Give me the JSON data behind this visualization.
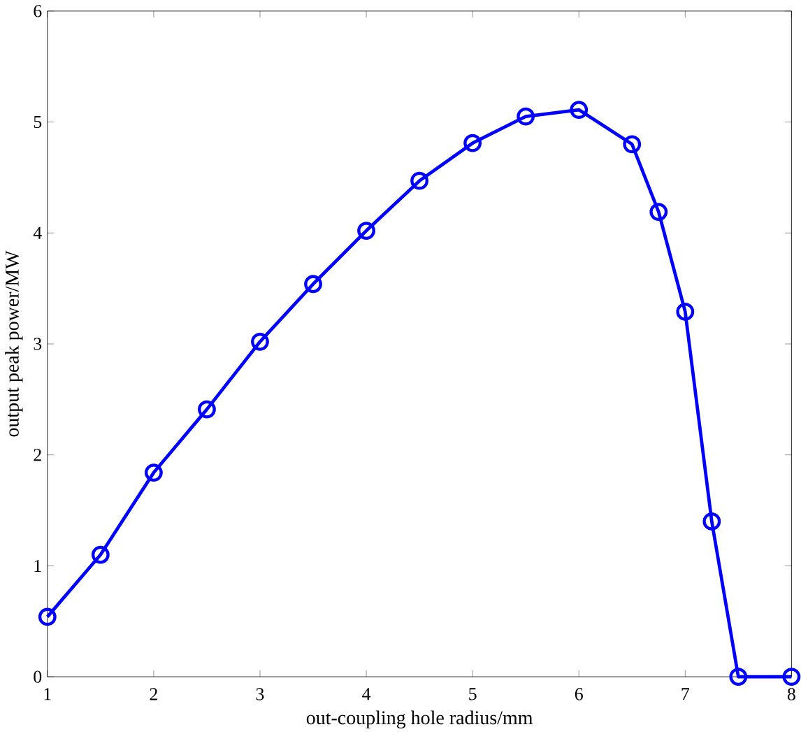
{
  "chart_data": {
    "type": "line",
    "xlabel": "out-coupling hole radius/mm",
    "ylabel": "output peak power/MW",
    "x": [
      1,
      1.5,
      2,
      2.5,
      3,
      3.5,
      4,
      4.5,
      5,
      5.5,
      6,
      6.5,
      6.75,
      7,
      7.25,
      7.5,
      8
    ],
    "series": [
      {
        "color": "#0000ff",
        "values": [
          0.54,
          1.1,
          1.84,
          2.41,
          3.02,
          3.54,
          4.02,
          4.47,
          4.81,
          5.05,
          5.11,
          4.8,
          4.19,
          3.29,
          1.4,
          0,
          0
        ]
      }
    ],
    "xlim": [
      1,
      8
    ],
    "ylim": [
      0,
      6
    ],
    "xticks": [
      1,
      2,
      3,
      4,
      5,
      6,
      7,
      8
    ],
    "yticks": [
      0,
      1,
      2,
      3,
      4,
      5,
      6
    ],
    "marker": "circle",
    "line_style": "solid",
    "grid": false
  }
}
